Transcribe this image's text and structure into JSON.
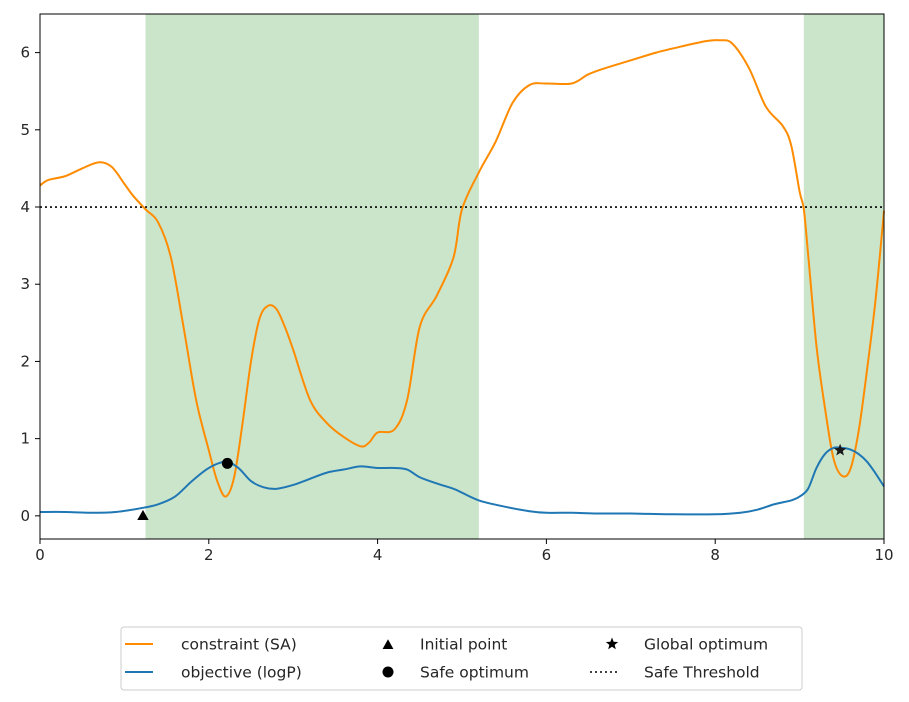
{
  "chart_data": {
    "type": "line",
    "title": "",
    "xlabel": "",
    "ylabel": "",
    "xlim": [
      0,
      10
    ],
    "ylim": [
      -0.3,
      6.5
    ],
    "x_ticks": [
      0,
      2,
      4,
      6,
      8,
      10
    ],
    "y_ticks": [
      0,
      1,
      2,
      3,
      4,
      5,
      6
    ],
    "grid": false,
    "legend_placement": "below",
    "safe_regions": [
      [
        1.25,
        5.2
      ],
      [
        9.05,
        10.0
      ]
    ],
    "threshold": 4,
    "series": [
      {
        "name": "constraint (SA)",
        "color": "#ff8c00",
        "x": [
          0,
          0.1,
          0.3,
          0.5,
          0.7,
          0.85,
          1.0,
          1.1,
          1.25,
          1.4,
          1.55,
          1.7,
          1.85,
          2.0,
          2.1,
          2.2,
          2.3,
          2.4,
          2.5,
          2.6,
          2.7,
          2.8,
          2.9,
          3.0,
          3.2,
          3.4,
          3.6,
          3.8,
          3.9,
          4.0,
          4.2,
          4.35,
          4.5,
          4.7,
          4.9,
          5.0,
          5.2,
          5.4,
          5.6,
          5.8,
          6.0,
          6.3,
          6.5,
          6.7,
          7.0,
          7.3,
          7.6,
          7.9,
          8.05,
          8.2,
          8.4,
          8.6,
          8.8,
          8.9,
          9.0,
          9.05,
          9.1,
          9.2,
          9.3,
          9.4,
          9.5,
          9.6,
          9.7,
          9.8,
          9.9,
          10.0
        ],
        "values": [
          4.28,
          4.35,
          4.4,
          4.5,
          4.58,
          4.52,
          4.3,
          4.15,
          3.97,
          3.8,
          3.35,
          2.45,
          1.5,
          0.85,
          0.45,
          0.25,
          0.5,
          1.2,
          2.0,
          2.55,
          2.72,
          2.68,
          2.45,
          2.15,
          1.5,
          1.2,
          1.02,
          0.9,
          0.95,
          1.08,
          1.12,
          1.5,
          2.45,
          2.85,
          3.35,
          3.97,
          4.45,
          4.85,
          5.35,
          5.58,
          5.6,
          5.6,
          5.72,
          5.8,
          5.9,
          6.0,
          6.08,
          6.15,
          6.16,
          6.12,
          5.8,
          5.3,
          5.05,
          4.8,
          4.2,
          3.97,
          3.4,
          2.2,
          1.4,
          0.75,
          0.52,
          0.6,
          1.1,
          1.9,
          2.8,
          3.95
        ]
      },
      {
        "name": "objective (logP)",
        "color": "#1f77b4",
        "x": [
          0,
          0.3,
          0.6,
          0.9,
          1.2,
          1.4,
          1.6,
          1.8,
          2.0,
          2.2,
          2.35,
          2.5,
          2.65,
          2.8,
          3.0,
          3.2,
          3.4,
          3.6,
          3.8,
          4.0,
          4.2,
          4.35,
          4.5,
          4.7,
          4.9,
          5.0,
          5.2,
          5.5,
          5.8,
          6.0,
          6.3,
          6.6,
          7.0,
          7.5,
          8.0,
          8.3,
          8.5,
          8.7,
          8.9,
          9.0,
          9.1,
          9.2,
          9.3,
          9.4,
          9.5,
          9.6,
          9.7,
          9.8,
          9.9,
          10.0
        ],
        "values": [
          0.05,
          0.05,
          0.04,
          0.05,
          0.1,
          0.15,
          0.25,
          0.45,
          0.62,
          0.7,
          0.62,
          0.45,
          0.37,
          0.35,
          0.4,
          0.48,
          0.56,
          0.6,
          0.64,
          0.62,
          0.62,
          0.6,
          0.5,
          0.42,
          0.35,
          0.3,
          0.2,
          0.12,
          0.06,
          0.04,
          0.04,
          0.03,
          0.03,
          0.02,
          0.02,
          0.04,
          0.08,
          0.15,
          0.2,
          0.25,
          0.35,
          0.62,
          0.8,
          0.88,
          0.88,
          0.86,
          0.8,
          0.7,
          0.55,
          0.38
        ]
      }
    ],
    "markers": [
      {
        "name": "Initial point",
        "shape": "triangle",
        "x": 1.22,
        "y": 0.0,
        "color": "#000000"
      },
      {
        "name": "Safe optimum",
        "shape": "circle",
        "x": 2.22,
        "y": 0.68,
        "color": "#000000"
      },
      {
        "name": "Global optimum",
        "shape": "star",
        "x": 9.48,
        "y": 0.85,
        "color": "#1a1a1a"
      }
    ],
    "threshold_style": {
      "name": "Safe Threshold",
      "color": "#000000",
      "dash": "dotted"
    },
    "safe_region_color": "#a8d4a8",
    "legend": [
      {
        "label": "constraint (SA)",
        "symbol": "line-orange"
      },
      {
        "label": "objective (logP)",
        "symbol": "line-blue"
      },
      {
        "label": "Initial point",
        "symbol": "triangle"
      },
      {
        "label": "Safe optimum",
        "symbol": "circle"
      },
      {
        "label": "Global optimum",
        "symbol": "star"
      },
      {
        "label": "Safe Threshold",
        "symbol": "dotted"
      }
    ]
  }
}
